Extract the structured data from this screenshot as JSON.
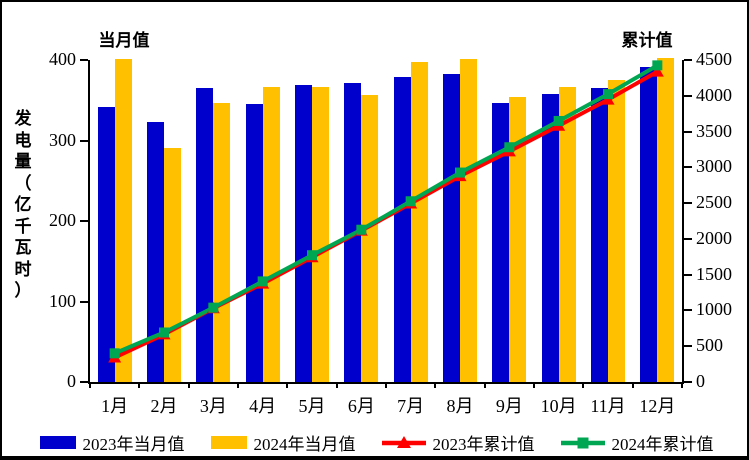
{
  "chart_data": {
    "type": "bar+line",
    "categories": [
      "1月",
      "2月",
      "3月",
      "4月",
      "5月",
      "6月",
      "7月",
      "8月",
      "9月",
      "10月",
      "11月",
      "12月"
    ],
    "series": [
      {
        "name": "2023年当月值",
        "type": "bar",
        "axis": "left",
        "color": "#0000CC",
        "values": [
          342,
          323,
          365,
          345,
          369,
          371,
          379,
          383,
          346,
          358,
          365,
          391
        ]
      },
      {
        "name": "2024年当月值",
        "type": "bar",
        "axis": "left",
        "color": "#FFC000",
        "values": [
          401,
          291,
          347,
          367,
          366,
          356,
          398,
          401,
          354,
          367,
          375,
          402
        ]
      },
      {
        "name": "2023年累计值",
        "type": "line",
        "marker": "triangle",
        "axis": "right",
        "color": "#FF0000",
        "values": [
          342,
          665,
          1030,
          1375,
          1744,
          2115,
          2494,
          2877,
          3223,
          3581,
          3946,
          4337
        ]
      },
      {
        "name": "2024年累计值",
        "type": "line",
        "marker": "square",
        "axis": "right",
        "color": "#00A651",
        "values": [
          401,
          692,
          1039,
          1406,
          1772,
          2128,
          2526,
          2927,
          3281,
          3648,
          4023,
          4425
        ]
      }
    ],
    "left_axis": {
      "title": "当月值",
      "min": 0,
      "max": 400,
      "ticks": [
        "0",
        "100",
        "200",
        "300",
        "400"
      ]
    },
    "right_axis": {
      "title": "累计值",
      "min": 0,
      "max": 4500,
      "ticks": [
        "0",
        "500",
        "1000",
        "1500",
        "2000",
        "2500",
        "3000",
        "3500",
        "4000",
        "4500"
      ]
    },
    "ylabel": "发电量（亿千瓦时）",
    "legend_position": "bottom",
    "grid": false
  }
}
